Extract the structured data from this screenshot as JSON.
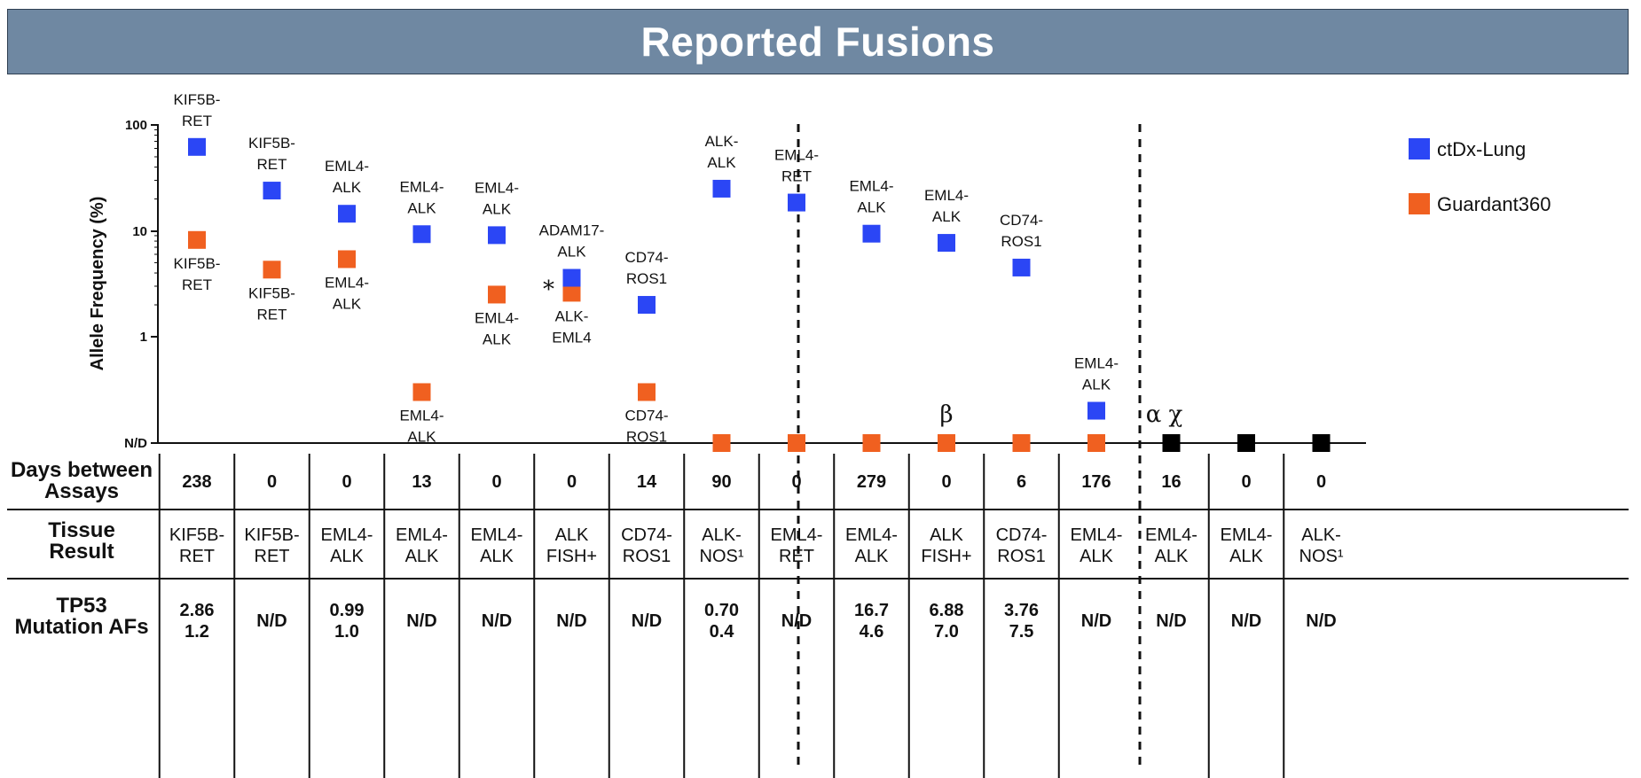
{
  "header": {
    "title": "Reported Fusions"
  },
  "colors": {
    "ctdx": "#2b46f5",
    "guardant": "#f06020",
    "none": "#000000",
    "banner": "#6f88a2"
  },
  "chart_data": {
    "type": "scatter",
    "ylabel": "Allele Frequency (%)",
    "yscale": "log",
    "yticks": [
      "N/D",
      "1",
      "10",
      "100"
    ],
    "grid": false,
    "legend_position": "top-right",
    "legend": [
      {
        "name": "ctDx-Lung",
        "color": "#2b46f5"
      },
      {
        "name": "Guardant360",
        "color": "#f06020"
      }
    ],
    "annotations": {
      "asterisk": "*",
      "beta": "β",
      "alpha_chi": "α χ"
    },
    "samples": [
      {
        "ctdx": 62,
        "ctdx_label": [
          "KIF5B-",
          "RET"
        ],
        "g": 8.2,
        "g_label": [
          "KIF5B-",
          "RET"
        ]
      },
      {
        "ctdx": 24,
        "ctdx_label": [
          "KIF5B-",
          "RET"
        ],
        "g": 4.3,
        "g_label": [
          "KIF5B-",
          "RET"
        ]
      },
      {
        "ctdx": 14.5,
        "ctdx_label": [
          "EML4-",
          "ALK"
        ],
        "g": 5.4,
        "g_label": [
          "EML4-",
          "ALK"
        ]
      },
      {
        "ctdx": 9.3,
        "ctdx_label": [
          "EML4-",
          "ALK"
        ],
        "g": 0.3,
        "g_label": [
          "EML4-",
          "ALK"
        ]
      },
      {
        "ctdx": 9.1,
        "ctdx_label": [
          "EML4-",
          "ALK"
        ],
        "g": 2.5,
        "g_label": [
          "EML4-",
          "ALK"
        ]
      },
      {
        "ctdx": 3.6,
        "ctdx_label": [
          "ADAM17-",
          "ALK"
        ],
        "g": 2.6,
        "g_label": [
          "ALK-",
          "EML4"
        ]
      },
      {
        "ctdx": 2.0,
        "ctdx_label": [
          "CD74-",
          "ROS1"
        ],
        "g": 0.3,
        "g_label": [
          "CD74-",
          "ROS1"
        ]
      },
      {
        "ctdx": 25,
        "ctdx_label": [
          "ALK-",
          "ALK"
        ],
        "g": "N/D",
        "g_label": []
      },
      {
        "ctdx": 18.5,
        "ctdx_label": [
          "EML4-",
          "RET"
        ],
        "g": "N/D",
        "g_label": []
      },
      {
        "ctdx": 9.4,
        "ctdx_label": [
          "EML4-",
          "ALK"
        ],
        "g": "N/D",
        "g_label": []
      },
      {
        "ctdx": 7.7,
        "ctdx_label": [
          "EML4-",
          "ALK"
        ],
        "g": "N/D",
        "g_label": []
      },
      {
        "ctdx": 4.5,
        "ctdx_label": [
          "CD74-",
          "ROS1"
        ],
        "g": "N/D",
        "g_label": []
      },
      {
        "ctdx": 0.2,
        "ctdx_label": [
          "EML4-",
          "ALK"
        ],
        "g": "N/D",
        "g_label": []
      },
      {
        "ctdx": "N/D",
        "ctdx_label": [],
        "g": "N/D",
        "g_label": []
      },
      {
        "ctdx": "N/D",
        "ctdx_label": [],
        "g": "N/D",
        "g_label": []
      },
      {
        "ctdx": "N/D",
        "ctdx_label": [],
        "g": "N/D",
        "g_label": []
      }
    ],
    "table": {
      "rows": [
        {
          "head": [
            "Days between",
            "Assays"
          ],
          "cells": [
            "238",
            "0",
            "0",
            "13",
            "0",
            "0",
            "14",
            "90",
            "0",
            "279",
            "0",
            "6",
            "176",
            "16",
            "0",
            "0"
          ]
        },
        {
          "head": [
            "Tissue",
            "Result"
          ],
          "cells": [
            [
              "KIF5B-",
              "RET"
            ],
            [
              "KIF5B-",
              "RET"
            ],
            [
              "EML4-",
              "ALK"
            ],
            [
              "EML4-",
              "ALK"
            ],
            [
              "EML4-",
              "ALK"
            ],
            [
              "ALK",
              "FISH+"
            ],
            [
              "CD74-",
              "ROS1"
            ],
            [
              "ALK-",
              "NOS¹"
            ],
            [
              "EML4-",
              "RET"
            ],
            [
              "EML4-",
              "ALK"
            ],
            [
              "ALK",
              "FISH+"
            ],
            [
              "CD74-",
              "ROS1"
            ],
            [
              "EML4-",
              "ALK"
            ],
            [
              "EML4-",
              "ALK"
            ],
            [
              "EML4-",
              "ALK"
            ],
            [
              "ALK-",
              "NOS¹"
            ]
          ]
        },
        {
          "head": [
            "TP53",
            "Mutation AFs"
          ],
          "cells": [
            [
              "2.86",
              "1.2"
            ],
            [
              "N/D"
            ],
            [
              "0.99",
              "1.0"
            ],
            [
              "N/D"
            ],
            [
              "N/D"
            ],
            [
              "N/D"
            ],
            [
              "N/D"
            ],
            [
              "0.70",
              "0.4"
            ],
            [
              "N/D"
            ],
            [
              "16.7",
              "4.6"
            ],
            [
              "6.88",
              "7.0"
            ],
            [
              "3.76",
              "7.5"
            ],
            [
              "N/D"
            ],
            [
              "N/D"
            ],
            [
              "N/D"
            ],
            [
              "N/D"
            ]
          ]
        }
      ]
    }
  }
}
